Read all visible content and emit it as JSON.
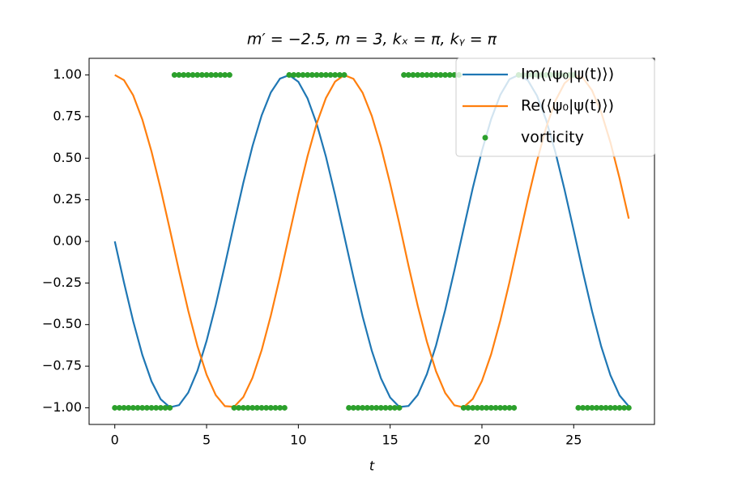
{
  "chart_data": {
    "type": "line",
    "title": "m′ = −2.5,  m = 3,  kₓ = π,  kᵧ = π",
    "x_label": "t",
    "x": [
      0,
      0.5,
      1,
      1.5,
      2,
      2.5,
      3,
      3.5,
      4,
      4.5,
      5,
      5.5,
      6,
      6.5,
      7,
      7.5,
      8,
      8.5,
      9,
      9.5,
      10,
      10.5,
      11,
      11.5,
      12,
      12.5,
      13,
      13.5,
      14,
      14.5,
      15,
      15.5,
      16,
      16.5,
      17,
      17.5,
      18,
      18.5,
      19,
      19.5,
      20,
      20.5,
      21,
      21.5,
      22,
      22.5,
      23,
      23.5,
      24,
      24.5,
      25,
      25.5,
      26,
      26.5,
      27,
      27.5,
      28
    ],
    "series": [
      {
        "name": "Im(⟨ψ₀|ψ(t)⟩)",
        "color": "#1f77b4",
        "type": "line",
        "values": [
          0,
          -0.247,
          -0.479,
          -0.682,
          -0.841,
          -0.949,
          -0.997,
          -0.984,
          -0.909,
          -0.778,
          -0.598,
          -0.382,
          -0.141,
          0.108,
          0.351,
          0.572,
          0.757,
          0.895,
          0.978,
          0.999,
          0.959,
          0.859,
          0.706,
          0.51,
          0.279,
          0.033,
          -0.215,
          -0.451,
          -0.657,
          -0.823,
          -0.938,
          -0.995,
          -0.989,
          -0.923,
          -0.798,
          -0.625,
          -0.412,
          -0.174,
          0.075,
          0.32,
          0.544,
          0.734,
          0.88,
          0.974,
          1.0,
          0.968,
          0.875,
          0.729,
          0.537,
          0.311,
          0.066,
          -0.183,
          -0.42,
          -0.632,
          -0.804,
          -0.926,
          -0.991
        ]
      },
      {
        "name": "Re(⟨ψ₀|ψ(t)⟩)",
        "color": "#ff7f0e",
        "type": "line",
        "values": [
          1,
          0.969,
          0.878,
          0.732,
          0.54,
          0.315,
          0.071,
          -0.178,
          -0.416,
          -0.628,
          -0.801,
          -0.924,
          -0.99,
          -0.994,
          -0.936,
          -0.82,
          -0.654,
          -0.446,
          -0.211,
          0.038,
          0.284,
          0.512,
          0.709,
          0.861,
          0.96,
          0.999,
          0.977,
          0.893,
          0.754,
          0.568,
          0.347,
          0.107,
          -0.146,
          -0.386,
          -0.602,
          -0.781,
          -0.911,
          -0.985,
          -0.997,
          -0.947,
          -0.839,
          -0.679,
          -0.476,
          -0.245,
          0.004,
          0.252,
          0.483,
          0.685,
          0.844,
          0.95,
          0.998,
          0.983,
          0.907,
          0.775,
          0.595,
          0.378,
          0.137
        ]
      },
      {
        "name": "vorticity",
        "color": "#2ca02c",
        "type": "scatter",
        "x": [
          0,
          0.25,
          0.5,
          0.75,
          1,
          1.25,
          1.5,
          1.75,
          2,
          2.25,
          2.5,
          2.75,
          3,
          3.25,
          3.5,
          3.75,
          4,
          4.25,
          4.5,
          4.75,
          5,
          5.25,
          5.5,
          5.75,
          6,
          6.25,
          6.5,
          6.75,
          7,
          7.25,
          7.5,
          7.75,
          8,
          8.25,
          8.5,
          8.75,
          9,
          9.25,
          9.5,
          9.75,
          10,
          10.25,
          10.5,
          10.75,
          11,
          11.25,
          11.5,
          11.75,
          12,
          12.25,
          12.5,
          12.75,
          13,
          13.25,
          13.5,
          13.75,
          14,
          14.25,
          14.5,
          14.75,
          15,
          15.25,
          15.5,
          15.75,
          16,
          16.25,
          16.5,
          16.75,
          17,
          17.25,
          17.5,
          17.75,
          18,
          18.25,
          18.5,
          18.75,
          19,
          19.25,
          19.5,
          19.75,
          20,
          20.25,
          20.5,
          20.75,
          21,
          21.25,
          21.5,
          21.75,
          22,
          22.25,
          22.5,
          22.75,
          23,
          23.25,
          23.5,
          23.75,
          24,
          24.25,
          24.5,
          24.75,
          25,
          25.25,
          25.5,
          25.75,
          26,
          26.25,
          26.5,
          26.75,
          27,
          27.25,
          27.5,
          27.75,
          28
        ],
        "values": [
          -1,
          -1,
          -1,
          -1,
          -1,
          -1,
          -1,
          -1,
          -1,
          -1,
          -1,
          -1,
          -1,
          1,
          1,
          1,
          1,
          1,
          1,
          1,
          1,
          1,
          1,
          1,
          1,
          1,
          -1,
          -1,
          -1,
          -1,
          -1,
          -1,
          -1,
          -1,
          -1,
          -1,
          -1,
          -1,
          1,
          1,
          1,
          1,
          1,
          1,
          1,
          1,
          1,
          1,
          1,
          1,
          1,
          -1,
          -1,
          -1,
          -1,
          -1,
          -1,
          -1,
          -1,
          -1,
          -1,
          -1,
          -1,
          1,
          1,
          1,
          1,
          1,
          1,
          1,
          1,
          1,
          1,
          1,
          1,
          1,
          -1,
          -1,
          -1,
          -1,
          -1,
          -1,
          -1,
          -1,
          -1,
          -1,
          -1,
          -1,
          1,
          1,
          1,
          1,
          1,
          1,
          1,
          1,
          1,
          1,
          1,
          1,
          1,
          -1,
          -1,
          -1,
          -1,
          -1,
          -1,
          -1,
          -1,
          -1,
          -1,
          -1,
          -1
        ]
      }
    ],
    "xlim": [
      -1.4,
      29.4
    ],
    "xticks": [
      0,
      5,
      10,
      15,
      20,
      25
    ],
    "ylim": [
      -1.1,
      1.1
    ],
    "yticks": [
      {
        "value": -1,
        "label": "−1.00"
      },
      {
        "value": -0.75,
        "label": "−0.75"
      },
      {
        "value": -0.5,
        "label": "−0.50"
      },
      {
        "value": -0.25,
        "label": "−0.25"
      },
      {
        "value": 0,
        "label": "0.00"
      },
      {
        "value": 0.25,
        "label": "0.25"
      },
      {
        "value": 0.5,
        "label": "0.50"
      },
      {
        "value": 0.75,
        "label": "0.75"
      },
      {
        "value": 1,
        "label": "1.00"
      }
    ],
    "legend": "upper right"
  }
}
